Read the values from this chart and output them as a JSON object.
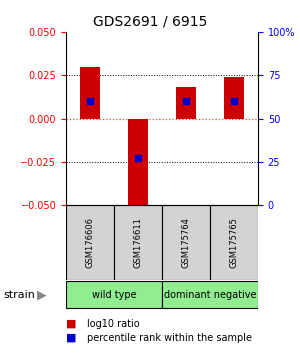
{
  "title": "GDS2691 / 6915",
  "samples": [
    "GSM176606",
    "GSM176611",
    "GSM175764",
    "GSM175765"
  ],
  "log10_ratio": [
    0.03,
    -0.055,
    0.018,
    0.024
  ],
  "percentile_rank": [
    0.6,
    0.27,
    0.6,
    0.6
  ],
  "groups": [
    {
      "label": "wild type",
      "samples": [
        0,
        1
      ],
      "color": "#90EE90"
    },
    {
      "label": "dominant negative",
      "samples": [
        2,
        3
      ],
      "color": "#90EE90"
    }
  ],
  "group_label": "strain",
  "ylim": [
    -0.05,
    0.05
  ],
  "yticks_left": [
    -0.05,
    -0.025,
    0,
    0.025,
    0.05
  ],
  "yticks_right": [
    0,
    25,
    50,
    75,
    100
  ],
  "bar_color": "#CC0000",
  "blue_color": "#0000CC",
  "zero_line_color": "#FF4444",
  "background_color": "#ffffff",
  "title_fontsize": 10,
  "tick_fontsize": 7,
  "sample_fontsize": 6,
  "group_fontsize": 7,
  "legend_fontsize": 7
}
